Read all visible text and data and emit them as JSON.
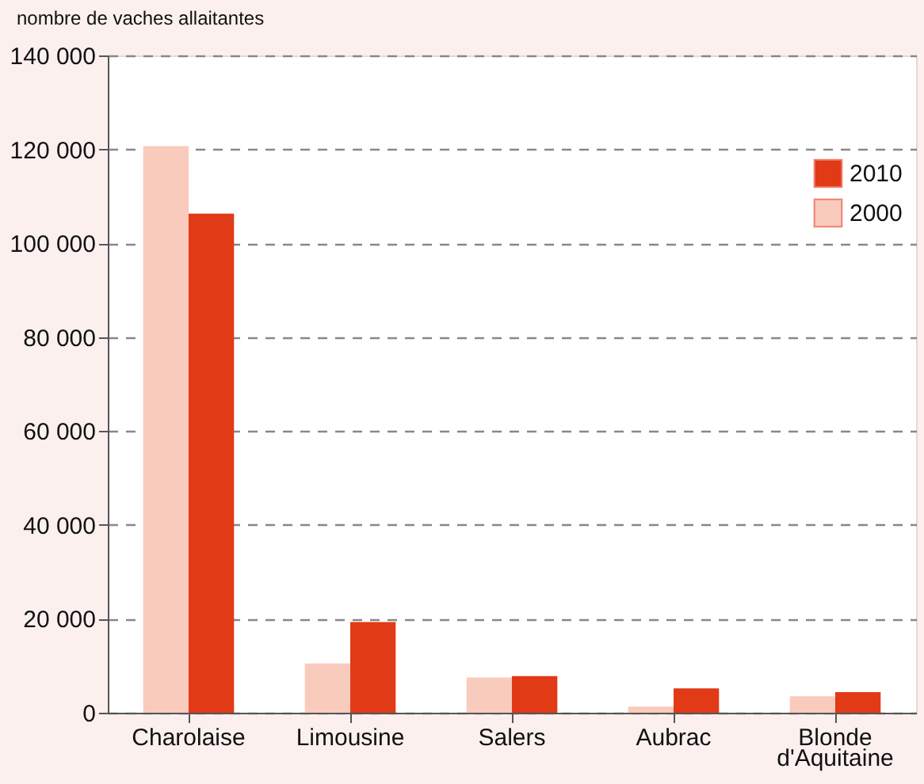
{
  "chart_data": {
    "type": "bar",
    "ylabel": "nombre de vaches allaitantes",
    "categories": [
      "Charolaise",
      "Limousine",
      "Salers",
      "Aubrac",
      "Blonde d'Aquitaine"
    ],
    "series": [
      {
        "name": "2000",
        "color": "#f8cbbd",
        "values": [
          120700,
          10500,
          7500,
          1300,
          3500
        ]
      },
      {
        "name": "2010",
        "color": "#e03a16",
        "values": [
          106300,
          19300,
          7800,
          5200,
          4400
        ]
      }
    ],
    "ylim": [
      0,
      140000
    ],
    "yticks": [
      0,
      20000,
      40000,
      60000,
      80000,
      100000,
      120000,
      140000
    ],
    "grid": "y",
    "legend": "top right"
  }
}
